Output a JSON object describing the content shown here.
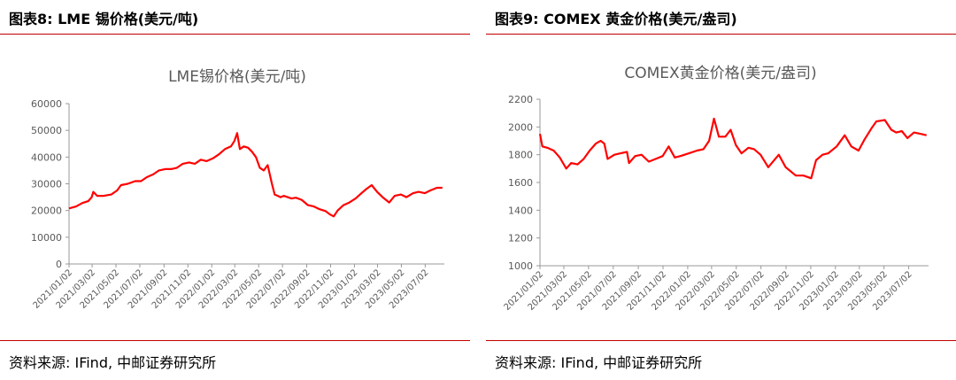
{
  "figures": [
    {
      "figure_title": "图表8: LME 锡价格(美元/吨)",
      "source": "资料来源: IFind, 中邮证券研究所"
    },
    {
      "figure_title": "图表9: COMEX 黄金价格(美元/盎司)",
      "source": "资料来源: IFind, 中邮证券研究所"
    }
  ],
  "colors": {
    "series": "#ff0000",
    "rule": "#c00000",
    "axis": "#999999",
    "text": "#595959"
  },
  "chart_data": [
    {
      "type": "line",
      "title": "LME锡价格(美元/吨)",
      "xlabel": "",
      "ylabel": "",
      "ylim": [
        0,
        60000
      ],
      "yticks": [
        0,
        10000,
        20000,
        30000,
        40000,
        50000,
        60000
      ],
      "xlim": [
        "2021-01-02",
        "2023-08-20"
      ],
      "xticks": [
        "2021/01/02",
        "2021/03/02",
        "2021/05/02",
        "2021/07/02",
        "2021/09/02",
        "2021/11/02",
        "2022/01/02",
        "2022/03/02",
        "2022/05/02",
        "2022/07/02",
        "2022/09/02",
        "2022/11/02",
        "2023/01/02",
        "2023/03/02",
        "2023/05/02",
        "2023/07/02"
      ],
      "grid": false,
      "legend": "none",
      "series": [
        {
          "x": [
            "2021-01-02",
            "2021-01-20",
            "2021-02-05",
            "2021-02-20",
            "2021-03-01",
            "2021-03-05",
            "2021-03-15",
            "2021-04-01",
            "2021-04-20",
            "2021-05-05",
            "2021-05-15",
            "2021-06-01",
            "2021-06-20",
            "2021-07-05",
            "2021-07-20",
            "2021-08-05",
            "2021-08-20",
            "2021-09-05",
            "2021-09-20",
            "2021-10-05",
            "2021-10-20",
            "2021-11-05",
            "2021-11-20",
            "2021-12-05",
            "2021-12-20",
            "2022-01-05",
            "2022-01-20",
            "2022-02-05",
            "2022-02-20",
            "2022-03-01",
            "2022-03-08",
            "2022-03-15",
            "2022-03-25",
            "2022-04-05",
            "2022-04-15",
            "2022-04-25",
            "2022-05-05",
            "2022-05-15",
            "2022-05-25",
            "2022-06-05",
            "2022-06-12",
            "2022-06-20",
            "2022-06-27",
            "2022-07-05",
            "2022-07-15",
            "2022-07-25",
            "2022-08-05",
            "2022-08-20",
            "2022-09-05",
            "2022-09-20",
            "2022-10-05",
            "2022-10-20",
            "2022-11-01",
            "2022-11-10",
            "2022-11-20",
            "2022-12-05",
            "2022-12-20",
            "2023-01-05",
            "2023-01-20",
            "2023-02-01",
            "2023-02-15",
            "2023-03-01",
            "2023-03-15",
            "2023-04-01",
            "2023-04-15",
            "2023-05-01",
            "2023-05-15",
            "2023-06-01",
            "2023-06-15",
            "2023-07-01",
            "2023-07-15",
            "2023-08-01",
            "2023-08-15"
          ],
          "values": [
            20800,
            21500,
            22800,
            23500,
            25000,
            27000,
            25500,
            25500,
            26000,
            27500,
            29500,
            30000,
            31000,
            31000,
            32500,
            33500,
            35000,
            35500,
            35500,
            36000,
            37500,
            38000,
            37500,
            39000,
            38500,
            39500,
            41000,
            43000,
            44000,
            46000,
            49000,
            43000,
            44000,
            43500,
            42000,
            40000,
            36000,
            35000,
            37000,
            30000,
            26000,
            25500,
            25000,
            25500,
            25000,
            24500,
            24800,
            24000,
            22000,
            21500,
            20500,
            19800,
            18500,
            17800,
            20000,
            22000,
            23000,
            24500,
            26500,
            28000,
            29500,
            27000,
            25000,
            23000,
            25500,
            26000,
            25000,
            26500,
            27000,
            26500,
            27500,
            28500,
            28500
          ]
        }
      ]
    },
    {
      "type": "line",
      "title": "COMEX黄金价格(美元/盎司)",
      "xlabel": "",
      "ylabel": "",
      "ylim": [
        1000,
        2200
      ],
      "yticks": [
        1000,
        1200,
        1400,
        1600,
        1800,
        2000,
        2200
      ],
      "xlim": [
        "2021-01-02",
        "2023-08-20"
      ],
      "xticks": [
        "2021/01/02",
        "2021/03/02",
        "2021/05/02",
        "2021/07/02",
        "2021/09/02",
        "2021/11/02",
        "2022/01/02",
        "2022/03/02",
        "2022/05/02",
        "2022/07/02",
        "2022/09/02",
        "2022/11/02",
        "2023/01/02",
        "2023/03/02",
        "2023/05/02",
        "2023/07/02"
      ],
      "grid": false,
      "legend": "none",
      "series": [
        {
          "x": [
            "2021-01-02",
            "2021-01-08",
            "2021-01-20",
            "2021-02-05",
            "2021-02-20",
            "2021-03-08",
            "2021-03-20",
            "2021-04-05",
            "2021-04-20",
            "2021-05-05",
            "2021-05-20",
            "2021-06-01",
            "2021-06-10",
            "2021-06-18",
            "2021-07-05",
            "2021-07-20",
            "2021-08-05",
            "2021-08-10",
            "2021-08-25",
            "2021-09-10",
            "2021-09-28",
            "2021-10-15",
            "2021-11-01",
            "2021-11-16",
            "2021-12-01",
            "2021-12-15",
            "2022-01-05",
            "2022-01-25",
            "2022-02-10",
            "2022-02-24",
            "2022-03-08",
            "2022-03-20",
            "2022-04-05",
            "2022-04-18",
            "2022-05-01",
            "2022-05-15",
            "2022-06-01",
            "2022-06-15",
            "2022-07-01",
            "2022-07-20",
            "2022-08-15",
            "2022-09-01",
            "2022-09-26",
            "2022-10-15",
            "2022-11-03",
            "2022-11-15",
            "2022-12-01",
            "2022-12-15",
            "2023-01-05",
            "2023-01-25",
            "2023-02-10",
            "2023-02-28",
            "2023-03-15",
            "2023-04-01",
            "2023-04-13",
            "2023-05-04",
            "2023-05-20",
            "2023-06-01",
            "2023-06-15",
            "2023-06-29",
            "2023-07-15",
            "2023-08-01",
            "2023-08-15"
          ],
          "values": [
            1950,
            1860,
            1850,
            1830,
            1780,
            1700,
            1740,
            1730,
            1770,
            1830,
            1880,
            1900,
            1880,
            1770,
            1800,
            1810,
            1820,
            1740,
            1790,
            1800,
            1750,
            1770,
            1790,
            1860,
            1780,
            1790,
            1810,
            1830,
            1840,
            1900,
            2060,
            1930,
            1930,
            1980,
            1870,
            1810,
            1850,
            1840,
            1800,
            1710,
            1800,
            1710,
            1650,
            1650,
            1630,
            1760,
            1800,
            1810,
            1860,
            1940,
            1860,
            1830,
            1910,
            1990,
            2040,
            2050,
            1980,
            1960,
            1970,
            1920,
            1960,
            1950,
            1940
          ]
        }
      ]
    }
  ]
}
